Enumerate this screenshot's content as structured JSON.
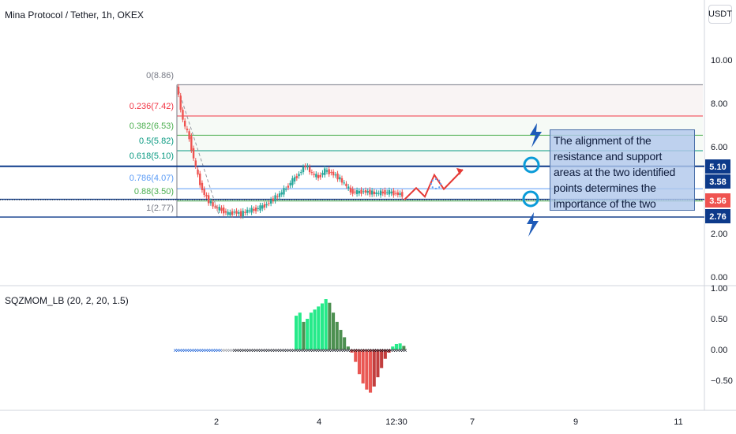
{
  "header": {
    "title": "Mina Protocol / Tether, 1h, OKEX",
    "currency": "USDT"
  },
  "indicator": {
    "label": "SQZMOM_LB (20, 2, 20, 1.5)"
  },
  "annotation": {
    "text": "The alignment of the resistance and support areas at the two identified points determines the importance of the two"
  },
  "price_axis": {
    "ticks": [
      "10.00",
      "8.00",
      "6.00",
      "2.00",
      "0.00"
    ]
  },
  "osc_axis": {
    "ticks": [
      "1.00",
      "0.50",
      "0.00",
      "−0.50"
    ]
  },
  "time_axis": {
    "ticks": [
      "2",
      "4",
      "12:30",
      "7",
      "9",
      "11"
    ]
  },
  "price_tags": [
    {
      "label": "5.10",
      "color": "#0d3a8a"
    },
    {
      "label": "3.58",
      "color": "#0d3a8a"
    },
    {
      "label": "3.56",
      "color": "#ef5350"
    },
    {
      "label": "2.76",
      "color": "#0d3a8a"
    }
  ],
  "fib_levels": [
    {
      "label": "0(8.86)",
      "color": "#787b86"
    },
    {
      "label": "0.236(7.42)",
      "color": "#f23645"
    },
    {
      "label": "0.382(6.53)",
      "color": "#4caf50"
    },
    {
      "label": "0.5(5.82)",
      "color": "#089981"
    },
    {
      "label": "0.618(5.10)",
      "color": "#089981"
    },
    {
      "label": "0.786(4.07)",
      "color": "#5b9cf6"
    },
    {
      "label": "0.88(3.50)",
      "color": "#4caf50"
    },
    {
      "label": "1(2.77)",
      "color": "#787b86"
    }
  ],
  "chart_data": {
    "type": "candlestick",
    "symbol": "Mina Protocol / Tether, 1h, OKEX",
    "price_range": [
      0,
      11
    ],
    "horizontal_levels": [
      5.1,
      3.58,
      2.76
    ],
    "last_price": 3.56,
    "fib_retracement": [
      {
        "ratio": 0,
        "price": 8.86
      },
      {
        "ratio": 0.236,
        "price": 7.42
      },
      {
        "ratio": 0.382,
        "price": 6.53
      },
      {
        "ratio": 0.5,
        "price": 5.82
      },
      {
        "ratio": 0.618,
        "price": 5.1
      },
      {
        "ratio": 0.786,
        "price": 4.07
      },
      {
        "ratio": 0.88,
        "price": 3.5
      },
      {
        "ratio": 1,
        "price": 2.77
      }
    ],
    "price_path": [
      8.86,
      7.2,
      6.4,
      5.0,
      4.0,
      3.5,
      3.2,
      3.1,
      2.9,
      3.0,
      2.9,
      3.05,
      3.1,
      3.2,
      3.35,
      3.6,
      3.8,
      4.1,
      4.45,
      4.75,
      5.15,
      4.75,
      4.6,
      4.9,
      4.8,
      4.6,
      4.3,
      3.95,
      3.9,
      3.95,
      3.9,
      3.85,
      3.9,
      3.9,
      3.85,
      3.8
    ],
    "projection_path": [
      3.56,
      4.1,
      3.7,
      4.7,
      4.05,
      4.95
    ],
    "squeeze_momentum": {
      "range": [
        -0.75,
        1.0
      ],
      "values": [
        0,
        0,
        0,
        0,
        0,
        0,
        0,
        0,
        0,
        0,
        0.55,
        0.6,
        0.45,
        0.5,
        0.6,
        0.65,
        0.7,
        0.75,
        0.82,
        0.76,
        0.6,
        0.45,
        0.32,
        0.2,
        0.05,
        -0.05,
        -0.2,
        -0.4,
        -0.55,
        -0.65,
        -0.7,
        -0.6,
        -0.45,
        -0.3,
        -0.15,
        -0.05,
        0.05,
        0.09,
        0.1,
        0.06
      ]
    }
  }
}
